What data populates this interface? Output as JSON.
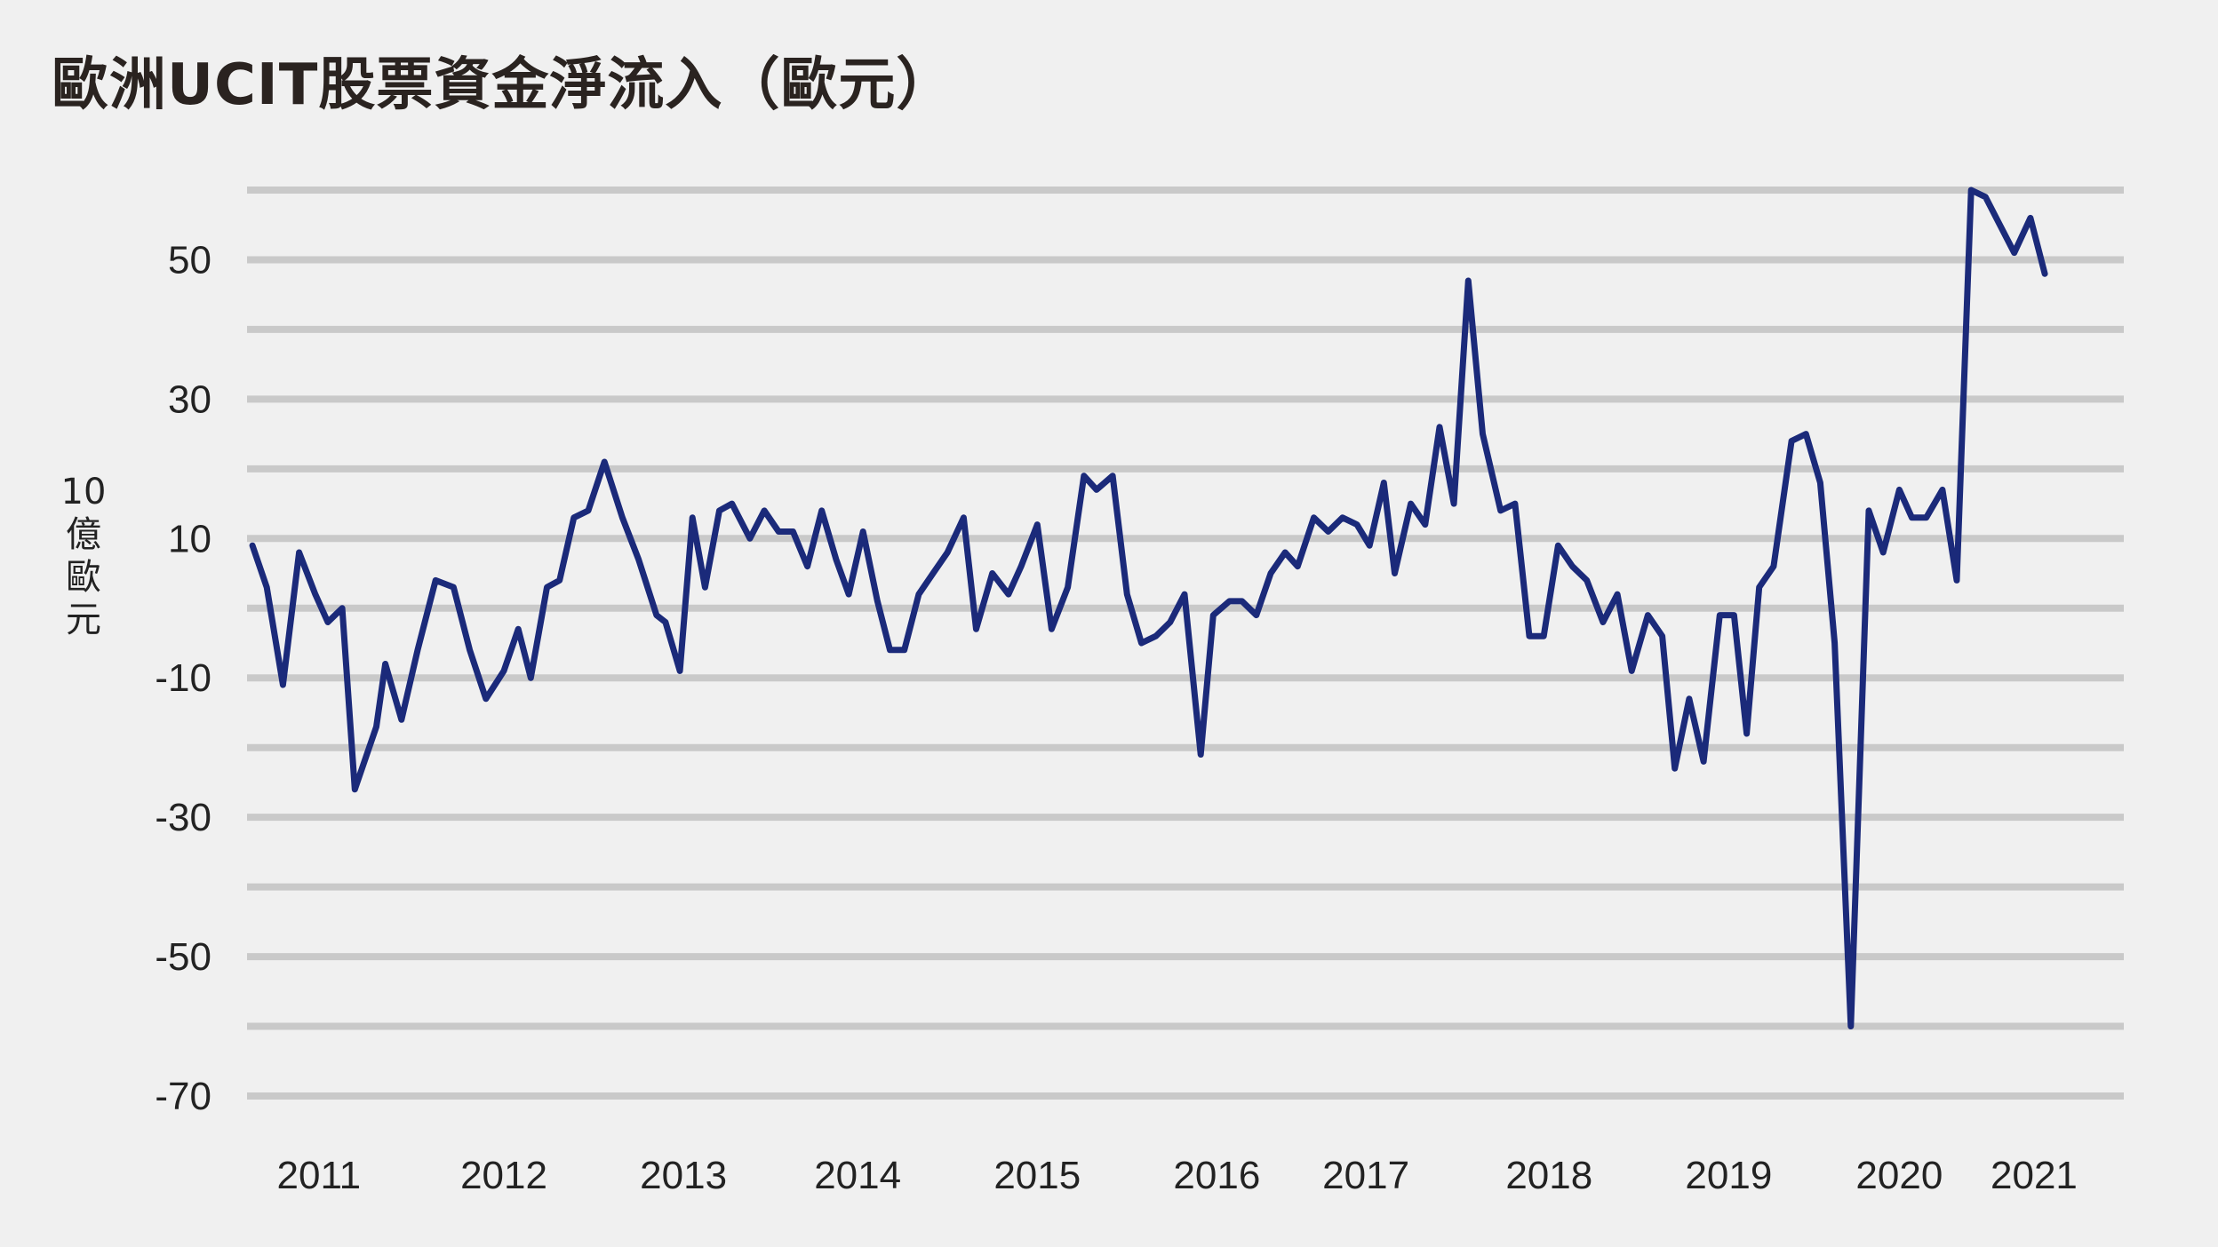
{
  "title": "歐洲UCIT股票資金淨流入（歐元）",
  "chart_data": {
    "type": "line",
    "title": "歐洲UCIT股票資金淨流入（歐元）",
    "ylabel_lines": [
      "10",
      "億",
      "歐",
      "元"
    ],
    "ylim": [
      -72,
      62
    ],
    "yticks": [
      50,
      30,
      10,
      -10,
      -30,
      -50,
      -70
    ],
    "ytick_labels": [
      "50",
      "30",
      "10",
      "-10",
      "-30",
      "-50",
      "-70"
    ],
    "grid_levels": [
      60,
      50,
      40,
      30,
      20,
      10,
      0,
      -10,
      -20,
      -30,
      -40,
      -50,
      -60,
      -70
    ],
    "xlim": [
      2010.6,
      2021.05
    ],
    "xticks": [
      {
        "label": "2011",
        "x": 2011.0
      },
      {
        "label": "2012",
        "x": 2012.03
      },
      {
        "label": "2013",
        "x": 2013.03
      },
      {
        "label": "2014",
        "x": 2014.0
      },
      {
        "label": "2015",
        "x": 2015.0
      },
      {
        "label": "2016",
        "x": 2016.0
      },
      {
        "label": "2017",
        "x": 2016.83
      },
      {
        "label": "2018",
        "x": 2017.85
      },
      {
        "label": "2019",
        "x": 2018.85
      },
      {
        "label": "2020",
        "x": 2019.8
      },
      {
        "label": "2021",
        "x": 2020.55
      }
    ],
    "colors": {
      "line": "#1b2a7a",
      "grid": "#c9c9c9",
      "background": "#f0f0f0"
    },
    "series": [
      {
        "values": [
          [
            2010.63,
            9
          ],
          [
            2010.71,
            3
          ],
          [
            2010.8,
            -11
          ],
          [
            2010.89,
            8
          ],
          [
            2010.98,
            2
          ],
          [
            2011.05,
            -2
          ],
          [
            2011.13,
            0
          ],
          [
            2011.2,
            -26
          ],
          [
            2011.32,
            -17
          ],
          [
            2011.37,
            -8
          ],
          [
            2011.46,
            -16
          ],
          [
            2011.55,
            -6
          ],
          [
            2011.65,
            4
          ],
          [
            2011.75,
            3
          ],
          [
            2011.84,
            -6
          ],
          [
            2011.93,
            -13
          ],
          [
            2012.03,
            -9
          ],
          [
            2012.11,
            -3
          ],
          [
            2012.18,
            -10
          ],
          [
            2012.27,
            3
          ],
          [
            2012.34,
            4
          ],
          [
            2012.42,
            13
          ],
          [
            2012.5,
            14
          ],
          [
            2012.59,
            21
          ],
          [
            2012.69,
            13
          ],
          [
            2012.78,
            7
          ],
          [
            2012.88,
            -1
          ],
          [
            2012.93,
            -2
          ],
          [
            2013.01,
            -9
          ],
          [
            2013.08,
            13
          ],
          [
            2013.15,
            3
          ],
          [
            2013.23,
            14
          ],
          [
            2013.3,
            15
          ],
          [
            2013.4,
            10
          ],
          [
            2013.48,
            14
          ],
          [
            2013.56,
            11
          ],
          [
            2013.64,
            11
          ],
          [
            2013.72,
            6
          ],
          [
            2013.8,
            14
          ],
          [
            2013.88,
            7
          ],
          [
            2013.95,
            2
          ],
          [
            2014.03,
            11
          ],
          [
            2014.11,
            1
          ],
          [
            2014.18,
            -6
          ],
          [
            2014.26,
            -6
          ],
          [
            2014.34,
            2
          ],
          [
            2014.42,
            5
          ],
          [
            2014.5,
            8
          ],
          [
            2014.59,
            13
          ],
          [
            2014.66,
            -3
          ],
          [
            2014.75,
            5
          ],
          [
            2014.84,
            2
          ],
          [
            2014.91,
            6
          ],
          [
            2015.0,
            12
          ],
          [
            2015.08,
            -3
          ],
          [
            2015.17,
            3
          ],
          [
            2015.26,
            19
          ],
          [
            2015.33,
            17
          ],
          [
            2015.42,
            19
          ],
          [
            2015.5,
            2
          ],
          [
            2015.58,
            -5
          ],
          [
            2015.66,
            -4
          ],
          [
            2015.74,
            -2
          ],
          [
            2015.82,
            2
          ],
          [
            2015.91,
            -21
          ],
          [
            2015.98,
            -1
          ],
          [
            2016.07,
            1
          ],
          [
            2016.14,
            1
          ],
          [
            2016.22,
            -1
          ],
          [
            2016.3,
            5
          ],
          [
            2016.38,
            8
          ],
          [
            2016.45,
            6
          ],
          [
            2016.54,
            13
          ],
          [
            2016.62,
            11
          ],
          [
            2016.7,
            13
          ],
          [
            2016.78,
            12
          ],
          [
            2016.85,
            9
          ],
          [
            2016.93,
            18
          ],
          [
            2016.99,
            5
          ],
          [
            2017.08,
            15
          ],
          [
            2017.16,
            12
          ],
          [
            2017.24,
            26
          ],
          [
            2017.32,
            15
          ],
          [
            2017.4,
            47
          ],
          [
            2017.48,
            25
          ],
          [
            2017.58,
            14
          ],
          [
            2017.66,
            15
          ],
          [
            2017.74,
            -4
          ],
          [
            2017.82,
            -4
          ],
          [
            2017.9,
            9
          ],
          [
            2017.98,
            6
          ],
          [
            2018.06,
            4
          ],
          [
            2018.15,
            -2
          ],
          [
            2018.23,
            2
          ],
          [
            2018.31,
            -9
          ],
          [
            2018.4,
            -1
          ],
          [
            2018.48,
            -4
          ],
          [
            2018.55,
            -23
          ],
          [
            2018.63,
            -13
          ],
          [
            2018.71,
            -22
          ],
          [
            2018.8,
            -1
          ],
          [
            2018.88,
            -1
          ],
          [
            2018.95,
            -18
          ],
          [
            2019.02,
            3
          ],
          [
            2019.1,
            6
          ],
          [
            2019.2,
            24
          ],
          [
            2019.28,
            25
          ],
          [
            2019.36,
            18
          ],
          [
            2019.44,
            -5
          ],
          [
            2019.53,
            -60
          ],
          [
            2019.63,
            14
          ],
          [
            2019.71,
            8
          ],
          [
            2019.8,
            17
          ],
          [
            2019.87,
            13
          ],
          [
            2019.95,
            13
          ],
          [
            2020.04,
            17
          ],
          [
            2020.12,
            4
          ],
          [
            2020.2,
            60
          ],
          [
            2020.28,
            59
          ],
          [
            2020.36,
            55
          ],
          [
            2020.44,
            51
          ],
          [
            2020.53,
            56
          ],
          [
            2020.61,
            48
          ]
        ]
      }
    ]
  }
}
